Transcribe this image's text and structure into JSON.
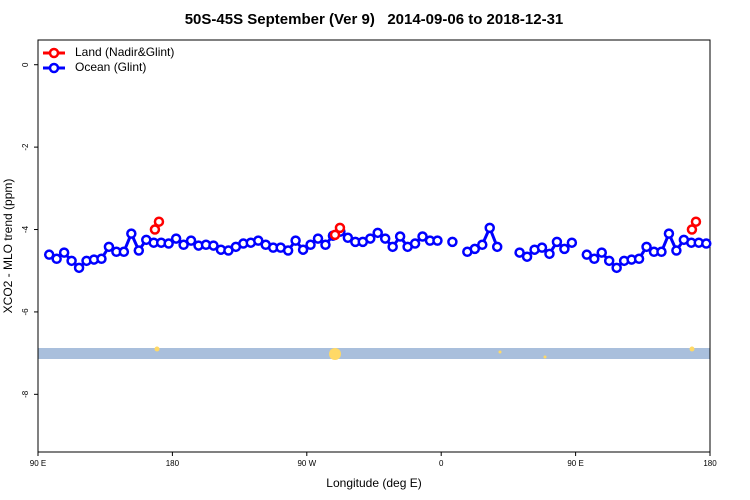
{
  "chart_data": {
    "type": "line",
    "title": "50S-45S September (Ver 9)   2014-09-06 to 2018-12-31",
    "x_label": "Longitude (deg E)",
    "y_label": "XCO2 - MLO trend (ppm)",
    "xlim": [
      90,
      540
    ],
    "ylim": [
      -9.4,
      0.6
    ],
    "xticks": [
      {
        "value": 90,
        "label": "90 E"
      },
      {
        "value": 180,
        "label": "180"
      },
      {
        "value": 270,
        "label": "90 W"
      },
      {
        "value": 360,
        "label": "0"
      },
      {
        "value": 450,
        "label": "90 E"
      },
      {
        "value": 540,
        "label": "180"
      }
    ],
    "yticks": [
      -8,
      -6,
      -4,
      -2,
      0
    ],
    "legend": "top-left",
    "series": [
      {
        "name": "Land (Nadir&Glint)",
        "color": "#ff0000",
        "x": [
          168.3,
          171.0,
          null,
          288.9,
          292.2,
          null,
          527.9,
          530.6
        ],
        "values": [
          -4.0,
          -3.81,
          null,
          -4.13,
          -3.96,
          null,
          -4.0,
          -3.81
        ]
      },
      {
        "name": "Ocean (Glint)",
        "color": "#0000ff",
        "x": [
          97.5,
          102.5,
          107.5,
          112.5,
          117.5,
          122.5,
          127.5,
          132.5,
          137.5,
          142.5,
          147.5,
          152.5,
          157.5,
          162.5,
          167.5,
          172.5,
          177.5,
          182.5,
          187.5,
          192.5,
          197.5,
          202.5,
          207.5,
          212.5,
          217.5,
          222.5,
          227.5,
          232.5,
          237.5,
          242.5,
          247.5,
          252.5,
          257.5,
          262.5,
          267.5,
          272.5,
          277.5,
          282.5,
          287.5,
          292.5,
          297.5,
          302.5,
          307.5,
          312.5,
          317.5,
          322.5,
          327.5,
          332.5,
          337.5,
          342.5,
          347.5,
          352.5,
          357.5,
          362.5,
          367.5,
          372.5,
          377.5,
          382.5,
          387.5,
          392.5,
          397.5,
          402.5,
          407.5,
          412.5,
          417.5,
          422.5,
          427.5,
          432.5,
          437.5,
          442.5,
          447.5,
          452.5,
          457.5,
          462.5,
          467.5,
          472.5,
          477.5,
          482.5,
          487.5,
          492.5,
          497.5,
          502.5,
          507.5,
          512.5,
          517.5,
          522.5,
          527.5,
          532.5,
          537.5
        ],
        "values": [
          -4.61,
          -4.71,
          -4.56,
          -4.76,
          -4.93,
          -4.76,
          -4.73,
          -4.71,
          -4.42,
          -4.54,
          -4.54,
          -4.1,
          -4.51,
          -4.25,
          -4.32,
          -4.32,
          -4.34,
          -4.22,
          -4.37,
          -4.27,
          -4.39,
          -4.37,
          -4.39,
          -4.49,
          -4.51,
          -4.42,
          -4.34,
          -4.32,
          -4.27,
          -4.37,
          -4.44,
          -4.44,
          -4.51,
          -4.27,
          -4.49,
          -4.37,
          -4.22,
          -4.37,
          -4.15,
          -4.05,
          -4.2,
          -4.3,
          -4.3,
          -4.22,
          -4.08,
          -4.22,
          -4.42,
          -4.17,
          -4.42,
          -4.34,
          -4.17,
          -4.27,
          -4.27,
          null,
          -4.3,
          null,
          -4.54,
          -4.47,
          -4.37,
          -3.96,
          -4.42,
          null,
          null,
          -4.56,
          -4.66,
          -4.49,
          -4.44,
          -4.59,
          -4.3,
          -4.47,
          -4.32,
          null,
          -4.61,
          -4.71,
          -4.56,
          -4.76,
          -4.93,
          -4.76,
          -4.73,
          -4.71,
          -4.42,
          -4.54,
          -4.54,
          -4.1,
          -4.51,
          -4.25,
          -4.32,
          -4.32,
          -4.34
        ]
      }
    ]
  }
}
